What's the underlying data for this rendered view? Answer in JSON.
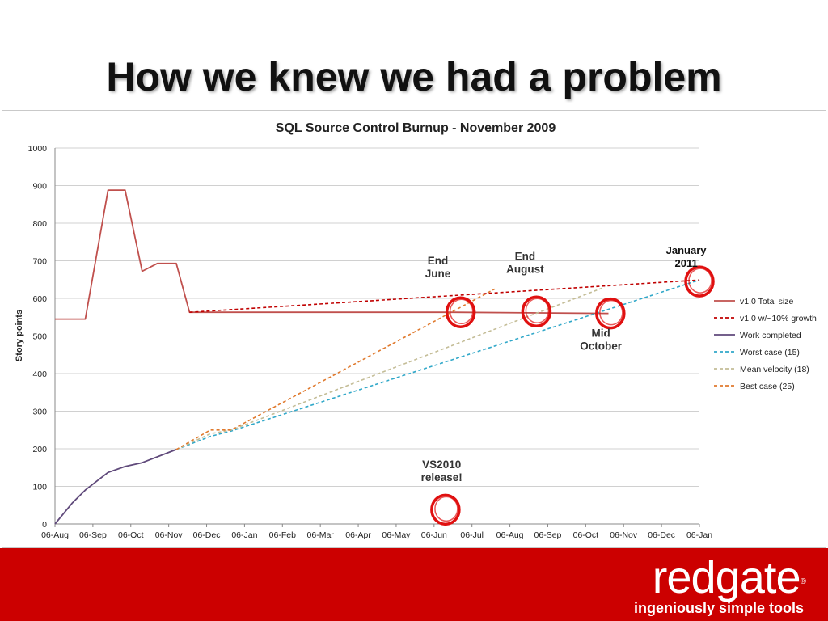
{
  "slide": {
    "title": "How we knew we had a problem"
  },
  "footer": {
    "logo_text": "redgate",
    "logo_registered": "®",
    "tagline": "ingeniously simple tools"
  },
  "colors": {
    "footer_bg": "#cc0000",
    "total_size": "#c0504d",
    "growth": "#c00000",
    "work_completed": "#604a7b",
    "worst_case": "#31a8c9",
    "mean_velocity": "#c4bd97",
    "best_case": "#e07a2e",
    "circle": "#e01010"
  },
  "chart_data": {
    "type": "line",
    "title": "SQL Source Control Burnup - November 2009",
    "ylabel": "Story points",
    "xlabel": "",
    "ylim": [
      0,
      1000
    ],
    "yticks": [
      0,
      100,
      200,
      300,
      400,
      500,
      600,
      700,
      800,
      900,
      1000
    ],
    "x_tick_labels": [
      "06-Aug",
      "06-Sep",
      "06-Oct",
      "06-Nov",
      "06-Dec",
      "06-Jan",
      "06-Feb",
      "06-Mar",
      "06-Apr",
      "06-May",
      "06-Jun",
      "06-Jul",
      "06-Aug",
      "06-Sep",
      "06-Oct",
      "06-Nov",
      "06-Dec",
      "06-Jan"
    ],
    "x_unit": "months from 06-Aug",
    "grid": true,
    "legend_position": "right",
    "series": [
      {
        "name": "v1.0 Total size",
        "style": "solid",
        "color": "#c0504d",
        "points": [
          [
            0,
            545
          ],
          [
            0.8,
            545
          ],
          [
            1.4,
            888
          ],
          [
            1.85,
            888
          ],
          [
            2.3,
            672
          ],
          [
            2.7,
            693
          ],
          [
            3.2,
            693
          ],
          [
            3.55,
            563
          ],
          [
            6.2,
            563
          ],
          [
            10.5,
            563
          ],
          [
            14.6,
            560
          ]
        ]
      },
      {
        "name": "v1.0 w/~10% growth",
        "style": "dashed",
        "color": "#c00000",
        "points": [
          [
            3.55,
            563
          ],
          [
            17,
            649
          ]
        ]
      },
      {
        "name": "Work completed",
        "style": "solid",
        "color": "#604a7b",
        "points": [
          [
            0,
            0
          ],
          [
            0.45,
            55
          ],
          [
            0.8,
            90
          ],
          [
            1.4,
            137
          ],
          [
            1.85,
            153
          ],
          [
            2.3,
            163
          ],
          [
            3.2,
            198
          ]
        ]
      },
      {
        "name": "Worst case (15)",
        "style": "dashed",
        "color": "#31a8c9",
        "points": [
          [
            3.2,
            198
          ],
          [
            4.1,
            233
          ],
          [
            4.65,
            247
          ],
          [
            17,
            649
          ]
        ]
      },
      {
        "name": "Mean velocity (18)",
        "style": "dashed",
        "color": "#c4bd97",
        "points": [
          [
            3.2,
            198
          ],
          [
            4.1,
            240
          ],
          [
            4.65,
            250
          ],
          [
            14.5,
            630
          ]
        ]
      },
      {
        "name": "Best case (25)",
        "style": "dashed",
        "color": "#e07a2e",
        "points": [
          [
            3.2,
            198
          ],
          [
            4.1,
            250
          ],
          [
            4.65,
            250
          ],
          [
            11.6,
            625
          ]
        ]
      }
    ],
    "annotations": [
      {
        "lines": [
          "End",
          "June"
        ],
        "x": 10.1,
        "y": 690
      },
      {
        "lines": [
          "End",
          "August"
        ],
        "x": 12.4,
        "y": 702
      },
      {
        "lines": [
          "Mid",
          "October"
        ],
        "x": 14.4,
        "y": 498
      },
      {
        "lines": [
          "January",
          "2011"
        ],
        "x": 16.65,
        "y": 718,
        "small": true
      },
      {
        "lines": [
          "VS2010",
          "release!"
        ],
        "x": 10.2,
        "y": 148
      }
    ],
    "circles": [
      {
        "x": 10.7,
        "y": 563
      },
      {
        "x": 12.7,
        "y": 565
      },
      {
        "x": 14.65,
        "y": 560
      },
      {
        "x": 17.0,
        "y": 645
      },
      {
        "x": 10.3,
        "y": 38
      }
    ]
  }
}
